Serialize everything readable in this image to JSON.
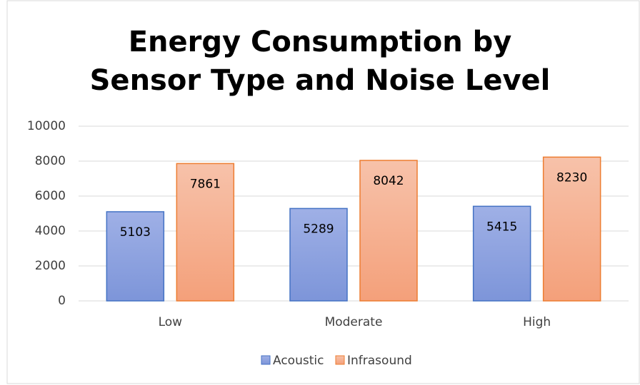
{
  "chart_data": {
    "type": "bar",
    "title": "Energy Consumption by Sensor Type and Noise Level",
    "categories": [
      "Low",
      "Moderate",
      "High"
    ],
    "series": [
      {
        "name": "Acoustic",
        "color": "#4472c4",
        "values": [
          5103,
          5289,
          5415
        ]
      },
      {
        "name": "Infrasound",
        "color": "#ed7d31",
        "values": [
          7861,
          8042,
          8230
        ]
      }
    ],
    "ylim": [
      0,
      10000
    ],
    "yticks": [
      0,
      2000,
      4000,
      6000,
      8000,
      10000
    ],
    "grid": true,
    "legend": "bottom"
  }
}
